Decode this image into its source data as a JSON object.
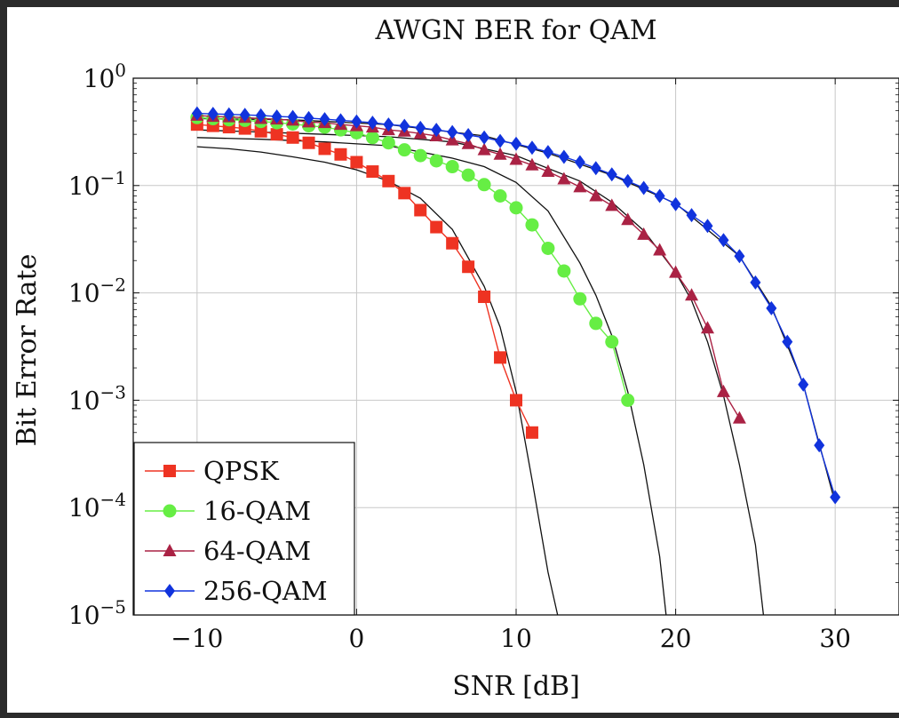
{
  "chart_data": {
    "type": "line",
    "title": "AWGN BER for QAM",
    "xlabel": "SNR [dB]",
    "ylabel": "Bit Error Rate",
    "xlim": [
      -14,
      34
    ],
    "ylim": [
      1e-05,
      1
    ],
    "yscale": "log",
    "grid": true,
    "legend_position": "bottom-left",
    "x_ticks": [
      -10,
      0,
      10,
      20,
      30
    ],
    "x_tick_labels": [
      "−10",
      "0",
      "10",
      "20",
      "30"
    ],
    "y_ticks": [
      {
        "value": 1,
        "base": "10",
        "exp": "0"
      },
      {
        "value": 0.1,
        "base": "10",
        "exp": "−1"
      },
      {
        "value": 0.01,
        "base": "10",
        "exp": "−2"
      },
      {
        "value": 0.001,
        "base": "10",
        "exp": "−3"
      },
      {
        "value": 0.0001,
        "base": "10",
        "exp": "−4"
      },
      {
        "value": 1e-05,
        "base": "10",
        "exp": "−5"
      }
    ],
    "series": [
      {
        "name": "QPSK",
        "color": "#ee3322",
        "marker": "square",
        "points": [
          [
            -10,
            0.37
          ],
          [
            -9,
            0.36
          ],
          [
            -8,
            0.35
          ],
          [
            -7,
            0.34
          ],
          [
            -6,
            0.32
          ],
          [
            -5,
            0.3
          ],
          [
            -4,
            0.28
          ],
          [
            -3,
            0.25
          ],
          [
            -2,
            0.22
          ],
          [
            -1,
            0.195
          ],
          [
            0,
            0.165
          ],
          [
            1,
            0.135
          ],
          [
            2,
            0.11
          ],
          [
            3,
            0.085
          ],
          [
            4,
            0.059
          ],
          [
            5,
            0.041
          ],
          [
            6,
            0.029
          ],
          [
            7,
            0.0175
          ],
          [
            8,
            0.0092
          ],
          [
            9,
            0.0025
          ],
          [
            10,
            0.001
          ],
          [
            11,
            0.0005
          ]
        ]
      },
      {
        "name": "16-QAM",
        "color": "#66ee44",
        "marker": "circle",
        "points": [
          [
            -10,
            0.43
          ],
          [
            -9,
            0.42
          ],
          [
            -8,
            0.41
          ],
          [
            -7,
            0.405
          ],
          [
            -6,
            0.395
          ],
          [
            -5,
            0.385
          ],
          [
            -4,
            0.375
          ],
          [
            -3,
            0.36
          ],
          [
            -2,
            0.35
          ],
          [
            -1,
            0.33
          ],
          [
            0,
            0.31
          ],
          [
            1,
            0.28
          ],
          [
            2,
            0.25
          ],
          [
            3,
            0.215
          ],
          [
            4,
            0.19
          ],
          [
            5,
            0.17
          ],
          [
            6,
            0.15
          ],
          [
            7,
            0.125
          ],
          [
            8,
            0.102
          ],
          [
            9,
            0.08
          ],
          [
            10,
            0.062
          ],
          [
            11,
            0.043
          ],
          [
            12,
            0.026
          ],
          [
            13,
            0.016
          ],
          [
            14,
            0.0088
          ],
          [
            15,
            0.0052
          ],
          [
            16,
            0.0035
          ],
          [
            17,
            0.001
          ]
        ]
      },
      {
        "name": "64-QAM",
        "color": "#aa2244",
        "marker": "triangle",
        "points": [
          [
            -10,
            0.45
          ],
          [
            -9,
            0.44
          ],
          [
            -8,
            0.435
          ],
          [
            -7,
            0.43
          ],
          [
            -6,
            0.42
          ],
          [
            -5,
            0.415
          ],
          [
            -4,
            0.405
          ],
          [
            -3,
            0.39
          ],
          [
            -2,
            0.385
          ],
          [
            -1,
            0.37
          ],
          [
            0,
            0.36
          ],
          [
            1,
            0.35
          ],
          [
            2,
            0.33
          ],
          [
            3,
            0.32
          ],
          [
            4,
            0.305
          ],
          [
            5,
            0.29
          ],
          [
            6,
            0.265
          ],
          [
            7,
            0.245
          ],
          [
            8,
            0.215
          ],
          [
            9,
            0.195
          ],
          [
            10,
            0.175
          ],
          [
            11,
            0.155
          ],
          [
            12,
            0.135
          ],
          [
            13,
            0.115
          ],
          [
            14,
            0.097
          ],
          [
            15,
            0.08
          ],
          [
            16,
            0.065
          ],
          [
            17,
            0.048
          ],
          [
            18,
            0.035
          ],
          [
            19,
            0.025
          ],
          [
            20,
            0.0155
          ],
          [
            21,
            0.0095
          ],
          [
            22,
            0.0047
          ],
          [
            23,
            0.0012
          ],
          [
            24,
            0.00068
          ]
        ]
      },
      {
        "name": "256-QAM",
        "color": "#1133dd",
        "marker": "diamond",
        "points": [
          [
            -10,
            0.47
          ],
          [
            -9,
            0.465
          ],
          [
            -8,
            0.46
          ],
          [
            -7,
            0.455
          ],
          [
            -6,
            0.45
          ],
          [
            -5,
            0.44
          ],
          [
            -4,
            0.435
          ],
          [
            -3,
            0.425
          ],
          [
            -2,
            0.415
          ],
          [
            -1,
            0.405
          ],
          [
            0,
            0.395
          ],
          [
            1,
            0.385
          ],
          [
            2,
            0.37
          ],
          [
            3,
            0.36
          ],
          [
            4,
            0.345
          ],
          [
            5,
            0.33
          ],
          [
            6,
            0.315
          ],
          [
            7,
            0.295
          ],
          [
            8,
            0.28
          ],
          [
            9,
            0.26
          ],
          [
            10,
            0.245
          ],
          [
            11,
            0.225
          ],
          [
            12,
            0.205
          ],
          [
            13,
            0.185
          ],
          [
            14,
            0.165
          ],
          [
            15,
            0.145
          ],
          [
            16,
            0.127
          ],
          [
            17,
            0.11
          ],
          [
            18,
            0.095
          ],
          [
            19,
            0.08
          ],
          [
            20,
            0.067
          ],
          [
            21,
            0.053
          ],
          [
            22,
            0.042
          ],
          [
            23,
            0.031
          ],
          [
            24,
            0.022
          ],
          [
            25,
            0.0125
          ],
          [
            26,
            0.0072
          ],
          [
            27,
            0.0035
          ],
          [
            28,
            0.0014
          ],
          [
            29,
            0.00038
          ],
          [
            30,
            0.000125
          ]
        ]
      }
    ],
    "theory_curves": [
      {
        "color": "#111111",
        "points": [
          [
            -10,
            0.23
          ],
          [
            -8,
            0.22
          ],
          [
            -6,
            0.205
          ],
          [
            -4,
            0.185
          ],
          [
            -2,
            0.165
          ],
          [
            0,
            0.14
          ],
          [
            2,
            0.11
          ],
          [
            4,
            0.076
          ],
          [
            6,
            0.039
          ],
          [
            8,
            0.0115
          ],
          [
            9,
            0.0048
          ],
          [
            10,
            0.0012
          ],
          [
            11,
            0.00018
          ],
          [
            12,
            2.5e-05
          ],
          [
            12.6,
            1e-05
          ]
        ]
      },
      {
        "color": "#111111",
        "points": [
          [
            -10,
            0.28
          ],
          [
            -6,
            0.27
          ],
          [
            -2,
            0.255
          ],
          [
            2,
            0.235
          ],
          [
            6,
            0.18
          ],
          [
            8,
            0.15
          ],
          [
            10,
            0.107
          ],
          [
            12,
            0.058
          ],
          [
            14,
            0.019
          ],
          [
            15,
            0.0095
          ],
          [
            16,
            0.004
          ],
          [
            17,
            0.0012
          ],
          [
            18,
            0.00025
          ],
          [
            19,
            3.5e-05
          ],
          [
            19.4,
            1e-05
          ]
        ]
      },
      {
        "color": "#111111",
        "points": [
          [
            -10,
            0.33
          ],
          [
            -6,
            0.315
          ],
          [
            -2,
            0.3
          ],
          [
            2,
            0.285
          ],
          [
            6,
            0.255
          ],
          [
            10,
            0.19
          ],
          [
            14,
            0.11
          ],
          [
            16,
            0.07
          ],
          [
            18,
            0.038
          ],
          [
            20,
            0.0155
          ],
          [
            21,
            0.0085
          ],
          [
            22,
            0.0035
          ],
          [
            23,
            0.0011
          ],
          [
            24,
            0.00025
          ],
          [
            25,
            4.5e-05
          ],
          [
            25.5,
            1e-05
          ]
        ]
      },
      {
        "color": "#111111",
        "points": [
          [
            -10,
            0.42
          ],
          [
            -4,
            0.41
          ],
          [
            2,
            0.37
          ],
          [
            8,
            0.29
          ],
          [
            12,
            0.2
          ],
          [
            16,
            0.125
          ],
          [
            20,
            0.068
          ],
          [
            24,
            0.022
          ],
          [
            26,
            0.0075
          ],
          [
            28,
            0.0014
          ],
          [
            30,
            0.00011
          ]
        ]
      }
    ]
  }
}
